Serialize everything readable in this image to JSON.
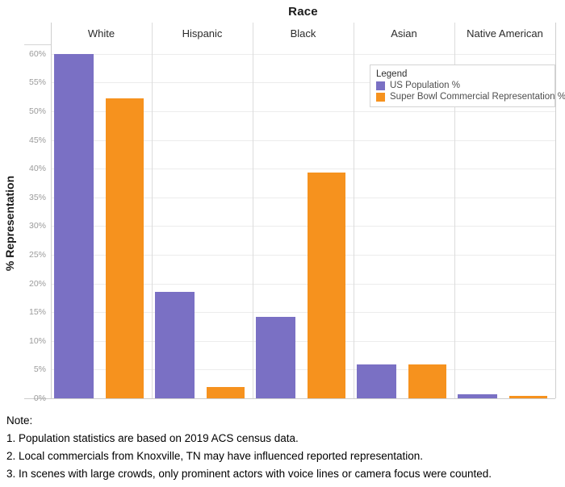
{
  "chart_data": {
    "type": "bar",
    "title": "Race",
    "categories": [
      "White",
      "Hispanic",
      "Black",
      "Asian",
      "Native American"
    ],
    "series": [
      {
        "name": "US Population %",
        "color": "#7A70C4",
        "values": [
          60,
          18.5,
          14.2,
          5.9,
          0.7
        ]
      },
      {
        "name": "Super Bowl Commercial Representation %",
        "color": "#F6921E",
        "values": [
          52.2,
          1.9,
          39.3,
          5.9,
          0.4
        ]
      }
    ],
    "xlabel": "Race",
    "ylabel": "% Representation",
    "ylim": [
      0,
      60
    ],
    "ytick_step": 5,
    "ytick_suffix": "%",
    "grid": true,
    "legend_position": "inside-top-right"
  },
  "legend": {
    "title": "Legend"
  },
  "notes": {
    "heading": "Note:",
    "lines": [
      "1. Population statistics are based on 2019 ACS census data.",
      "2. Local commercials from Knoxville, TN may have influenced reported representation.",
      "3. In scenes with large crowds, only prominent actors with voice lines or camera focus were counted."
    ]
  }
}
